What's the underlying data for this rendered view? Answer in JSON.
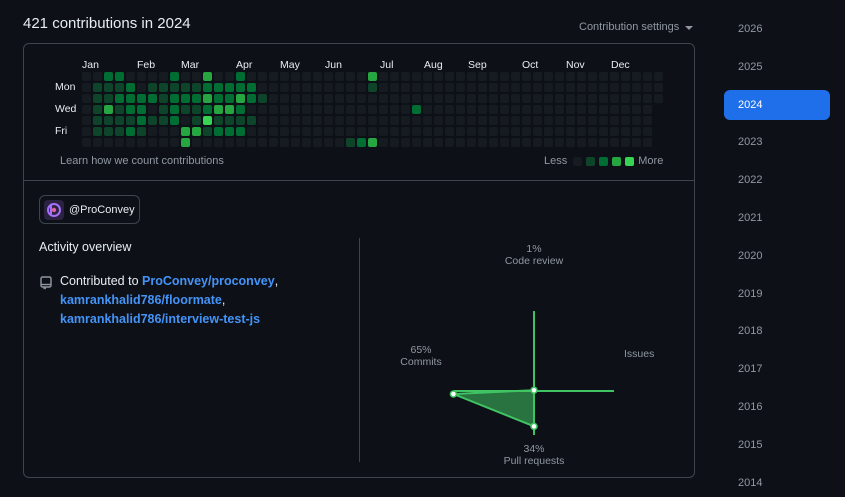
{
  "header": {
    "title": "421 contributions in 2024",
    "settings_label": "Contribution settings"
  },
  "graph": {
    "months": [
      "Jan",
      "Feb",
      "Mar",
      "Apr",
      "May",
      "Jun",
      "Jul",
      "Aug",
      "Sep",
      "Oct",
      "Nov",
      "Dec"
    ],
    "days": [
      "Mon",
      "Wed",
      "Fri"
    ],
    "learn_link": "Learn how we count contributions",
    "legend_less": "Less",
    "legend_more": "More",
    "colors": [
      "#161b22",
      "#0e4429",
      "#006d32",
      "#26a641",
      "#39d353"
    ],
    "weeks": [
      [
        0,
        0,
        0,
        0,
        0,
        0,
        0
      ],
      [
        0,
        1,
        1,
        1,
        1,
        1,
        0
      ],
      [
        2,
        1,
        1,
        3,
        1,
        1,
        0
      ],
      [
        2,
        1,
        2,
        1,
        1,
        1,
        0
      ],
      [
        0,
        2,
        2,
        2,
        1,
        2,
        0
      ],
      [
        0,
        0,
        2,
        2,
        2,
        1,
        0
      ],
      [
        0,
        1,
        2,
        0,
        1,
        0,
        0
      ],
      [
        0,
        1,
        1,
        1,
        1,
        0,
        0
      ],
      [
        2,
        1,
        2,
        2,
        2,
        0,
        0
      ],
      [
        0,
        1,
        2,
        1,
        0,
        3,
        3
      ],
      [
        0,
        1,
        2,
        1,
        1,
        3,
        0
      ],
      [
        3,
        2,
        3,
        2,
        4,
        1,
        0
      ],
      [
        0,
        2,
        2,
        3,
        1,
        2,
        0
      ],
      [
        0,
        2,
        2,
        3,
        1,
        2,
        0
      ],
      [
        2,
        2,
        3,
        2,
        1,
        2,
        0
      ],
      [
        0,
        2,
        2,
        0,
        1,
        0,
        0
      ],
      [
        0,
        0,
        1,
        0,
        0,
        0,
        0
      ],
      [
        0,
        0,
        0,
        0,
        0,
        0,
        0
      ],
      [
        0,
        0,
        0,
        0,
        0,
        0,
        0
      ],
      [
        0,
        0,
        0,
        0,
        0,
        0,
        0
      ],
      [
        0,
        0,
        0,
        0,
        0,
        0,
        0
      ],
      [
        0,
        0,
        0,
        0,
        0,
        0,
        0
      ],
      [
        0,
        0,
        0,
        0,
        0,
        0,
        0
      ],
      [
        0,
        0,
        0,
        0,
        0,
        0,
        0
      ],
      [
        0,
        0,
        0,
        0,
        0,
        0,
        1
      ],
      [
        0,
        0,
        0,
        0,
        0,
        0,
        2
      ],
      [
        3,
        1,
        0,
        0,
        0,
        0,
        3
      ],
      [
        0,
        0,
        0,
        0,
        0,
        0,
        0
      ],
      [
        0,
        0,
        0,
        0,
        0,
        0,
        0
      ],
      [
        0,
        0,
        0,
        0,
        0,
        0,
        0
      ],
      [
        0,
        0,
        0,
        2,
        0,
        0,
        0
      ],
      [
        0,
        0,
        0,
        0,
        0,
        0,
        0
      ],
      [
        0,
        0,
        0,
        0,
        0,
        0,
        0
      ],
      [
        0,
        0,
        0,
        0,
        0,
        0,
        0
      ],
      [
        0,
        0,
        0,
        0,
        0,
        0,
        0
      ],
      [
        0,
        0,
        0,
        0,
        0,
        0,
        0
      ],
      [
        0,
        0,
        0,
        0,
        0,
        0,
        0
      ],
      [
        0,
        0,
        0,
        0,
        0,
        0,
        0
      ],
      [
        0,
        0,
        0,
        0,
        0,
        0,
        0
      ],
      [
        0,
        0,
        0,
        0,
        0,
        0,
        0
      ],
      [
        0,
        0,
        0,
        0,
        0,
        0,
        0
      ],
      [
        0,
        0,
        0,
        0,
        0,
        0,
        0
      ],
      [
        0,
        0,
        0,
        0,
        0,
        0,
        0
      ],
      [
        0,
        0,
        0,
        0,
        0,
        0,
        0
      ],
      [
        0,
        0,
        0,
        0,
        0,
        0,
        0
      ],
      [
        0,
        0,
        0,
        0,
        0,
        0,
        0
      ],
      [
        0,
        0,
        0,
        0,
        0,
        0,
        0
      ],
      [
        0,
        0,
        0,
        0,
        0,
        0,
        0
      ],
      [
        0,
        0,
        0,
        0,
        0,
        0,
        0
      ],
      [
        0,
        0,
        0,
        0,
        0,
        0,
        0
      ],
      [
        0,
        0,
        0,
        0,
        0,
        0,
        0
      ],
      [
        0,
        0,
        0,
        0,
        0,
        0,
        0
      ],
      [
        0,
        0,
        0
      ]
    ]
  },
  "org": {
    "name": "@ProConvey",
    "icon": "org-avatar-icon"
  },
  "activity": {
    "title": "Activity overview",
    "prefix": "Contributed to ",
    "repos": [
      "ProConvey/proconvey",
      "kamrankhalid786/floormate",
      "kamrankhalid786/interview-test-js"
    ],
    "sep1": ",",
    "sep2": ","
  },
  "radar": {
    "code_review": {
      "pct": "1%",
      "label": "Code review",
      "value": 1
    },
    "issues": {
      "pct": "",
      "label": "Issues",
      "value": 0
    },
    "pull_requests": {
      "pct": "34%",
      "label": "Pull requests",
      "value": 34
    },
    "commits": {
      "pct": "65%",
      "label": "Commits",
      "value": 65
    },
    "accent": "#40c463"
  },
  "years": [
    "2026",
    "2025",
    "2024",
    "2023",
    "2022",
    "2021",
    "2020",
    "2019",
    "2018",
    "2017",
    "2016",
    "2015",
    "2014"
  ],
  "selected_year": "2024"
}
